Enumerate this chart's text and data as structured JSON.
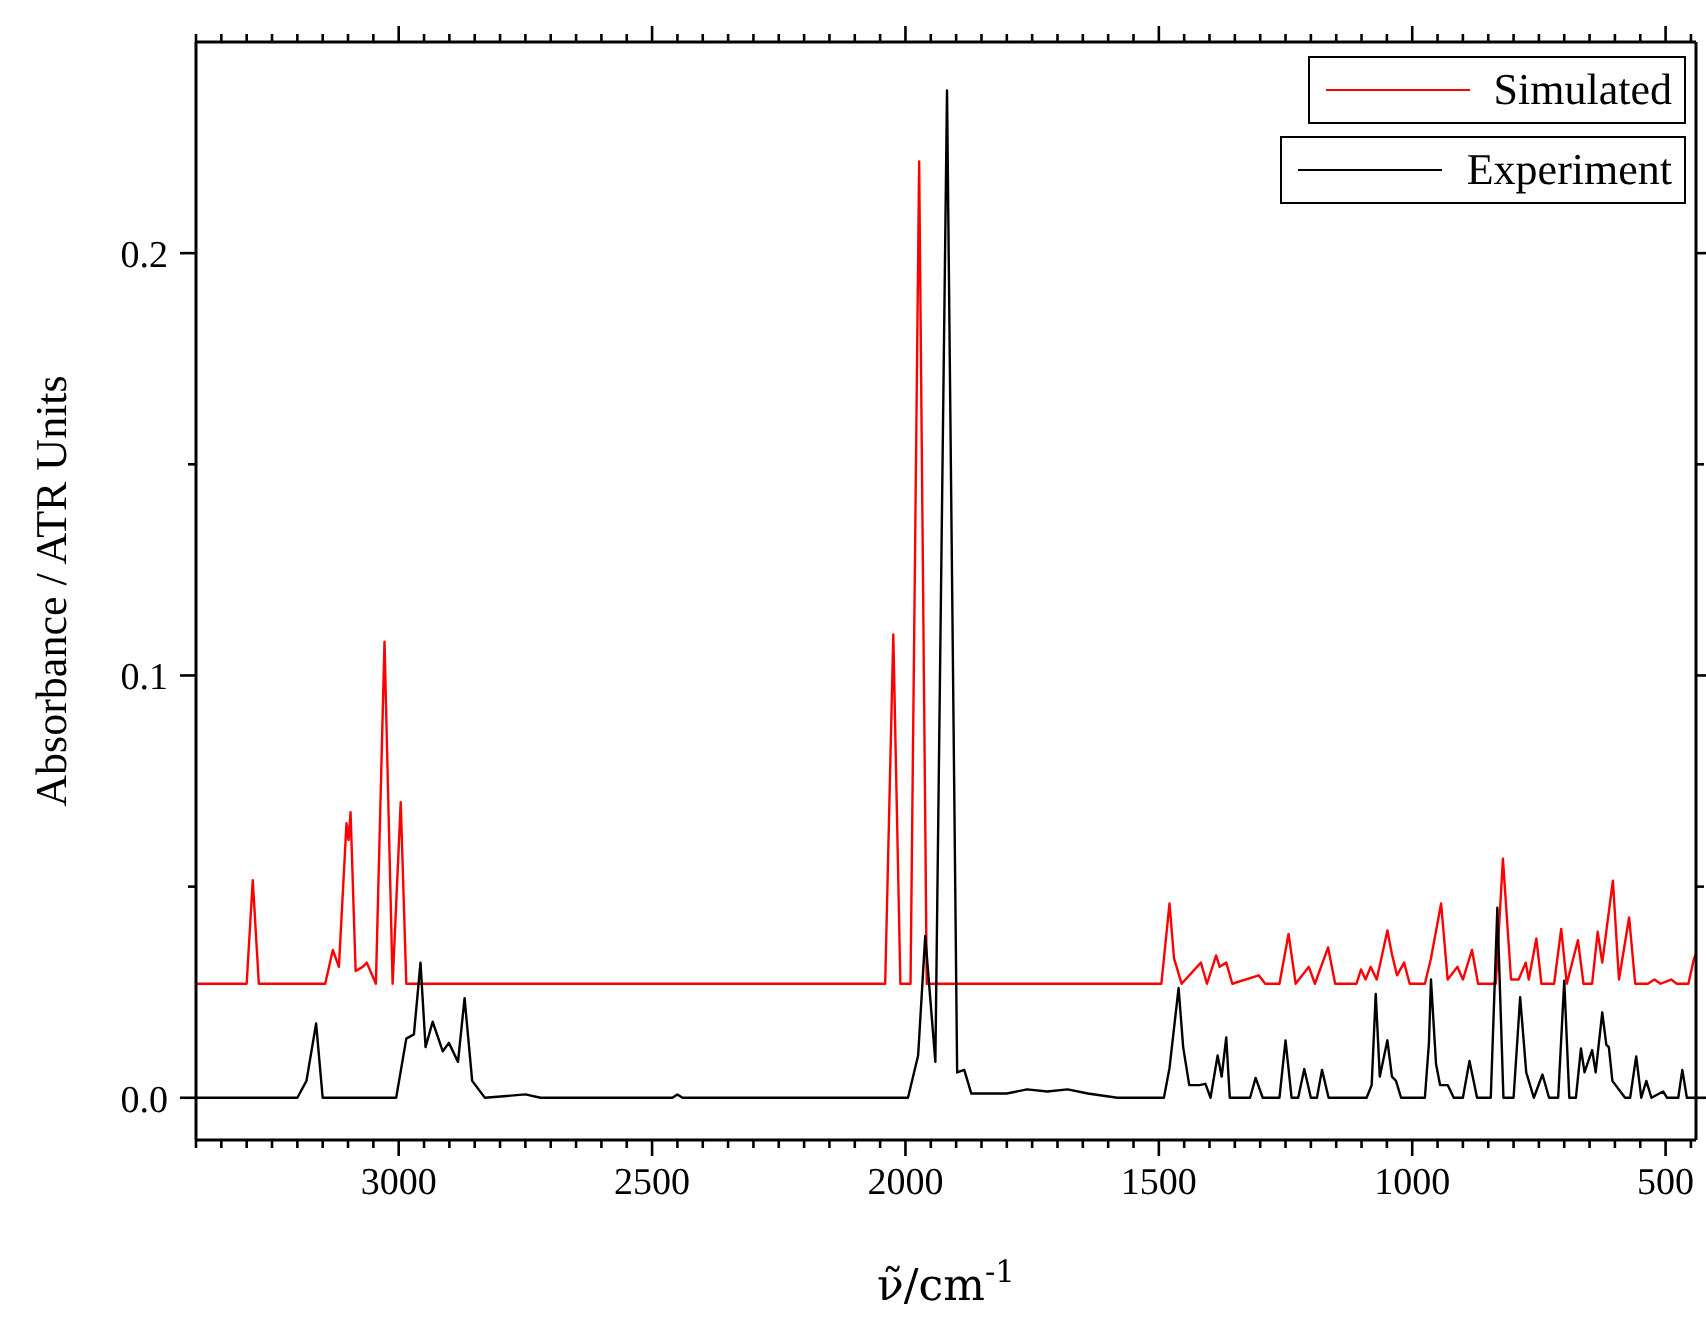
{
  "chart_data": {
    "type": "line",
    "xlabel": "ν̃/cm$^{-1}$",
    "ylabel": "Absorbance / ATR Units",
    "xlim": [
      3400,
      440
    ],
    "ylim": [
      -0.01,
      0.25
    ],
    "xticks": [
      {
        "value": 3400,
        "label": null
      },
      {
        "value": 3350,
        "label": null
      },
      {
        "value": 3300,
        "label": null
      },
      {
        "value": 3250,
        "label": null
      },
      {
        "value": 3200,
        "label": null
      },
      {
        "value": 3150,
        "label": null
      },
      {
        "value": 3100,
        "label": null
      },
      {
        "value": 3050,
        "label": null
      },
      3000,
      {
        "value": 2950,
        "label": null
      },
      {
        "value": 2900,
        "label": null
      },
      {
        "value": 2850,
        "label": null
      },
      {
        "value": 2800,
        "label": null
      },
      {
        "value": 2750,
        "label": null
      },
      {
        "value": 2700,
        "label": null
      },
      {
        "value": 2650,
        "label": null
      },
      {
        "value": 2600,
        "label": null
      },
      {
        "value": 2550,
        "label": null
      },
      2500,
      {
        "value": 2450,
        "label": null
      },
      {
        "value": 2400,
        "label": null
      },
      {
        "value": 2350,
        "label": null
      },
      {
        "value": 2300,
        "label": null
      },
      {
        "value": 2250,
        "label": null
      },
      {
        "value": 2200,
        "label": null
      },
      {
        "value": 2150,
        "label": null
      },
      {
        "value": 2100,
        "label": null
      },
      {
        "value": 2050,
        "label": null
      },
      2000,
      {
        "value": 1950,
        "label": null
      },
      {
        "value": 1900,
        "label": null
      },
      {
        "value": 1850,
        "label": null
      },
      {
        "value": 1800,
        "label": null
      },
      {
        "value": 1750,
        "label": null
      },
      {
        "value": 1700,
        "label": null
      },
      {
        "value": 1650,
        "label": null
      },
      {
        "value": 1600,
        "label": null
      },
      {
        "value": 1550,
        "label": null
      },
      1500,
      {
        "value": 1450,
        "label": null
      },
      {
        "value": 1400,
        "label": null
      },
      {
        "value": 1350,
        "label": null
      },
      {
        "value": 1300,
        "label": null
      },
      {
        "value": 1250,
        "label": null
      },
      {
        "value": 1200,
        "label": null
      },
      {
        "value": 1150,
        "label": null
      },
      {
        "value": 1100,
        "label": null
      },
      {
        "value": 1050,
        "label": null
      },
      1000,
      {
        "value": 950,
        "label": null
      },
      {
        "value": 900,
        "label": null
      },
      {
        "value": 850,
        "label": null
      },
      {
        "value": 800,
        "label": null
      },
      {
        "value": 750,
        "label": null
      },
      {
        "value": 700,
        "label": null
      },
      {
        "value": 650,
        "label": null
      },
      {
        "value": 600,
        "label": null
      },
      {
        "value": 550,
        "label": null
      },
      500,
      {
        "value": 450,
        "label": null
      }
    ],
    "yticks": [
      {
        "value": 0,
        "label": "0.0"
      },
      {
        "value": 0.05,
        "label": null
      },
      {
        "value": 0.1,
        "label": "0.1"
      },
      {
        "value": 0.15,
        "label": null
      },
      {
        "value": 0.2,
        "label": "0.2"
      }
    ],
    "grid": false,
    "legend": "top right",
    "marker": "none",
    "line_style": "solid",
    "series": [
      {
        "name": "Simulated",
        "color": "#ff0000",
        "x": [
          3400,
          3300,
          3288,
          3276,
          3145,
          3130,
          3118,
          3103,
          3099,
          3095,
          3085,
          3071,
          3063,
          3045,
          3028,
          3012,
          2996,
          2985,
          2040,
          2024,
          2010,
          1990,
          1973,
          1958,
          1495,
          1479,
          1470,
          1455,
          1417,
          1405,
          1387,
          1380,
          1367,
          1355,
          1303,
          1290,
          1262,
          1244,
          1230,
          1204,
          1192,
          1166,
          1152,
          1110,
          1101,
          1092,
          1082,
          1070,
          1049,
          1040,
          1030,
          1016,
          1005,
          975,
          963,
          943,
          930,
          911,
          900,
          882,
          870,
          835,
          821,
          805,
          790,
          776,
          770,
          755,
          745,
          720,
          706,
          695,
          673,
          662,
          645,
          634,
          625,
          604,
          592,
          572,
          560,
          535,
          522,
          510,
          489,
          478,
          455,
          444,
          440
        ],
        "values": [
          0.027,
          0.027,
          0.0515,
          0.027,
          0.027,
          0.035,
          0.031,
          0.065,
          0.061,
          0.0676,
          0.03,
          0.031,
          0.032,
          0.027,
          0.108,
          0.027,
          0.07,
          0.027,
          0.027,
          0.1097,
          0.027,
          0.027,
          0.2217,
          0.027,
          0.027,
          0.046,
          0.033,
          0.027,
          0.032,
          0.027,
          0.0337,
          0.031,
          0.032,
          0.027,
          0.029,
          0.027,
          0.027,
          0.0388,
          0.027,
          0.031,
          0.027,
          0.0356,
          0.027,
          0.027,
          0.0304,
          0.028,
          0.031,
          0.028,
          0.0396,
          0.034,
          0.029,
          0.032,
          0.027,
          0.027,
          0.033,
          0.046,
          0.028,
          0.031,
          0.028,
          0.035,
          0.027,
          0.027,
          0.0566,
          0.028,
          0.028,
          0.032,
          0.028,
          0.0377,
          0.027,
          0.027,
          0.04,
          0.027,
          0.0373,
          0.027,
          0.027,
          0.0393,
          0.032,
          0.0514,
          0.028,
          0.0427,
          0.027,
          0.027,
          0.028,
          0.027,
          0.028,
          0.027,
          0.027,
          0.033,
          0.034
        ]
      },
      {
        "name": "Experiment",
        "color": "#000000",
        "x": [
          3400,
          3200,
          3182,
          3163,
          3150,
          3005,
          2985,
          2970,
          2957,
          2947,
          2933,
          2913,
          2901,
          2883,
          2870,
          2855,
          2830,
          2750,
          2720,
          2460,
          2450,
          2440,
          1995,
          1975,
          1961,
          1941,
          1918,
          1898,
          1884,
          1870,
          1800,
          1760,
          1720,
          1680,
          1640,
          1582,
          1490,
          1479,
          1461,
          1452,
          1440,
          1420,
          1408,
          1398,
          1384,
          1376,
          1367,
          1360,
          1320,
          1309,
          1295,
          1262,
          1250,
          1238,
          1225,
          1213,
          1200,
          1188,
          1178,
          1165,
          1090,
          1080,
          1072,
          1064,
          1049,
          1040,
          1032,
          1022,
          975,
          967,
          963,
          953,
          945,
          930,
          918,
          900,
          887,
          872,
          845,
          832,
          820,
          800,
          787,
          775,
          760,
          743,
          730,
          712,
          700,
          690,
          677,
          667,
          660,
          645,
          638,
          625,
          617,
          612,
          605,
          580,
          570,
          558,
          548,
          538,
          528,
          505,
          497,
          475,
          467,
          458,
          440
        ],
        "values": [
          0,
          0,
          0.004,
          0.0176,
          0,
          0,
          0.014,
          0.015,
          0.032,
          0.012,
          0.018,
          0.011,
          0.013,
          0.0085,
          0.0236,
          0.004,
          0,
          0.0008,
          0,
          0,
          0.0008,
          0,
          0,
          0.01,
          0.0383,
          0.0085,
          0.2385,
          0.006,
          0.0066,
          0.001,
          0.001,
          0.002,
          0.0015,
          0.002,
          0.001,
          0,
          0,
          0.007,
          0.026,
          0.012,
          0.003,
          0.003,
          0.0033,
          0,
          0.01,
          0.005,
          0.0143,
          0,
          0,
          0.0047,
          0,
          0,
          0.0136,
          0,
          0,
          0.0068,
          0,
          0,
          0.0066,
          0,
          0,
          0.003,
          0.0246,
          0.005,
          0.0136,
          0.005,
          0.004,
          0,
          0,
          0.013,
          0.028,
          0.008,
          0.003,
          0.003,
          0,
          0,
          0.0087,
          0,
          0,
          0.045,
          0,
          0,
          0.0238,
          0.006,
          0,
          0.0055,
          0,
          0,
          0.0277,
          0,
          0,
          0.0117,
          0.006,
          0.0113,
          0.006,
          0.0202,
          0.0126,
          0.012,
          0.004,
          0,
          0,
          0.0098,
          0,
          0.004,
          0,
          0.0015,
          0,
          0,
          0.0066,
          0,
          0
        ]
      }
    ]
  }
}
